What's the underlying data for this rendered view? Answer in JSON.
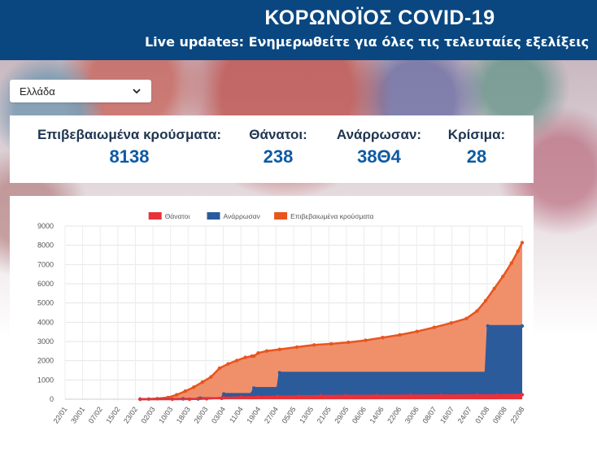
{
  "header": {
    "title": "ΚΟΡΩΝΟΪΟΣ COVID-19",
    "subtitle": "Live updates: Ενημερωθείτε για όλες τις τελευταίες εξελίξεις"
  },
  "country_select": {
    "value": "Ελλάδα",
    "icon": "chevron-down-icon"
  },
  "stats": {
    "confirmed": {
      "label": "Επιβεβαιωμένα κρούσματα:",
      "value": "8138"
    },
    "deaths": {
      "label": "Θάνατοι:",
      "value": "238"
    },
    "recovered": {
      "label": "Ανάρρωσαν:",
      "value": "38Θ4"
    },
    "critical": {
      "label": "Κρίσιμα:",
      "value": "28"
    }
  },
  "chart_data": {
    "type": "area",
    "title": "",
    "xlabel": "",
    "ylabel": "",
    "ylim": [
      0,
      9000
    ],
    "yticks": [
      0,
      1000,
      2000,
      3000,
      4000,
      5000,
      6000,
      7000,
      8000,
      9000
    ],
    "grid": true,
    "legend_position": "top-center",
    "x_start": "2020-01-22",
    "x_end": "2020-08-22",
    "x_tick_labels": [
      "22/01",
      "30/01",
      "07/02",
      "15/02",
      "23/02",
      "02/03",
      "10/03",
      "18/03",
      "26/03",
      "03/04",
      "11/04",
      "19/04",
      "27/04",
      "05/05",
      "13/05",
      "21/05",
      "29/05",
      "06/06",
      "14/06",
      "22/06",
      "30/06",
      "08/07",
      "16/07",
      "24/07",
      "01/08",
      "09/08",
      "22/08"
    ],
    "series": [
      {
        "name": "Θάνατοι",
        "color": "#e8313a",
        "points": [
          [
            "2020-02-26",
            0
          ],
          [
            "2020-03-12",
            1
          ],
          [
            "2020-03-20",
            6
          ],
          [
            "2020-03-28",
            26
          ],
          [
            "2020-04-05",
            79
          ],
          [
            "2020-04-13",
            101
          ],
          [
            "2020-04-21",
            116
          ],
          [
            "2020-04-30",
            140
          ],
          [
            "2020-05-10",
            151
          ],
          [
            "2020-05-20",
            171
          ],
          [
            "2020-06-01",
            179
          ],
          [
            "2020-06-15",
            183
          ],
          [
            "2020-07-01",
            192
          ],
          [
            "2020-07-15",
            193
          ],
          [
            "2020-08-01",
            206
          ],
          [
            "2020-08-10",
            212
          ],
          [
            "2020-08-22",
            238
          ]
        ]
      },
      {
        "name": "Ανάρρωσαν",
        "color": "#2c5b9c",
        "points": [
          [
            "2020-02-26",
            0
          ],
          [
            "2020-03-17",
            19
          ],
          [
            "2020-03-24",
            19
          ],
          [
            "2020-03-25",
            52
          ],
          [
            "2020-04-04",
            52
          ],
          [
            "2020-04-05",
            269
          ],
          [
            "2020-04-18",
            269
          ],
          [
            "2020-04-19",
            577
          ],
          [
            "2020-04-30",
            577
          ],
          [
            "2020-05-01",
            1374
          ],
          [
            "2020-08-05",
            1374
          ],
          [
            "2020-08-06",
            3804
          ],
          [
            "2020-08-22",
            3804
          ]
        ]
      },
      {
        "name": "Επιβεβαιωμένα κρούσματα",
        "color": "#e8551e",
        "fill": "#f0906a",
        "points": [
          [
            "2020-02-26",
            1
          ],
          [
            "2020-03-01",
            7
          ],
          [
            "2020-03-05",
            31
          ],
          [
            "2020-03-10",
            89
          ],
          [
            "2020-03-14",
            228
          ],
          [
            "2020-03-18",
            418
          ],
          [
            "2020-03-22",
            624
          ],
          [
            "2020-03-26",
            892
          ],
          [
            "2020-03-30",
            1156
          ],
          [
            "2020-04-03",
            1613
          ],
          [
            "2020-04-07",
            1832
          ],
          [
            "2020-04-11",
            2011
          ],
          [
            "2020-04-15",
            2170
          ],
          [
            "2020-04-18",
            2235
          ],
          [
            "2020-04-19",
            2245
          ],
          [
            "2020-04-21",
            2401
          ],
          [
            "2020-04-25",
            2506
          ],
          [
            "2020-05-01",
            2591
          ],
          [
            "2020-05-09",
            2710
          ],
          [
            "2020-05-17",
            2819
          ],
          [
            "2020-05-25",
            2878
          ],
          [
            "2020-06-02",
            2952
          ],
          [
            "2020-06-10",
            3058
          ],
          [
            "2020-06-18",
            3203
          ],
          [
            "2020-06-26",
            3343
          ],
          [
            "2020-07-04",
            3519
          ],
          [
            "2020-07-12",
            3732
          ],
          [
            "2020-07-20",
            3964
          ],
          [
            "2020-07-27",
            4193
          ],
          [
            "2020-08-01",
            4587
          ],
          [
            "2020-08-05",
            5123
          ],
          [
            "2020-08-09",
            5749
          ],
          [
            "2020-08-13",
            6381
          ],
          [
            "2020-08-17",
            7075
          ],
          [
            "2020-08-20",
            7684
          ],
          [
            "2020-08-22",
            8138
          ]
        ]
      }
    ]
  }
}
